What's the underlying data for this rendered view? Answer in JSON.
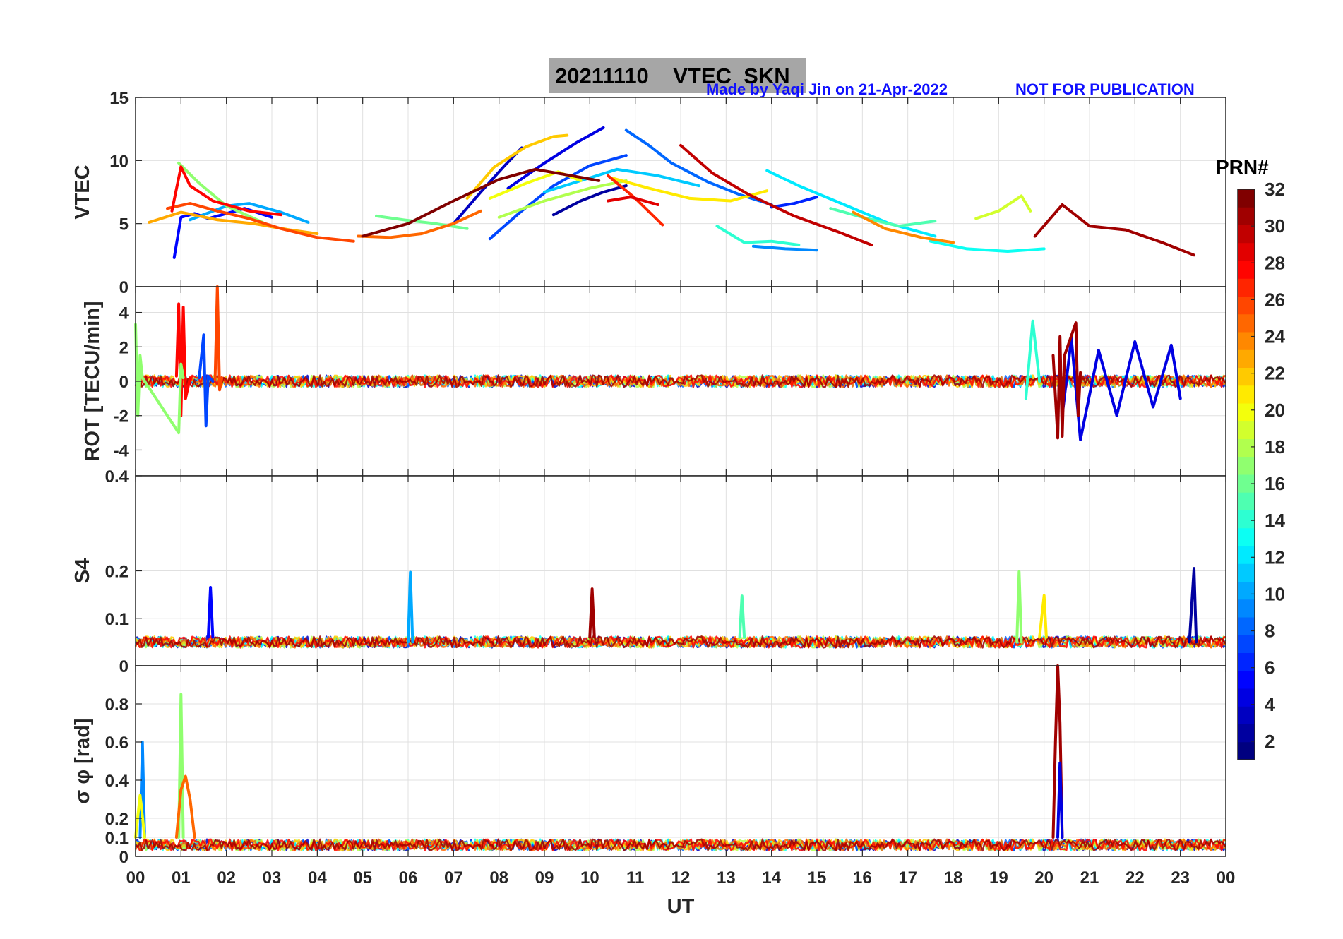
{
  "header": {
    "title": "20211110    VTEC  SKN",
    "credit": "Made by Yaqi Jin on 21-Apr-2022",
    "notice": "NOT FOR PUBLICATION"
  },
  "colors": {
    "title_box": "#a6a6a6",
    "credit_text": "#1010ff",
    "grid": "#e0e0e0",
    "axis": "#262626"
  },
  "colorbar": {
    "label": "PRN#",
    "min": 1,
    "max": 32,
    "ticks": [
      "2",
      "4",
      "6",
      "8",
      "10",
      "12",
      "14",
      "16",
      "18",
      "20",
      "22",
      "24",
      "26",
      "28",
      "30",
      "32"
    ],
    "colormap": "jet"
  },
  "chart_data": [
    {
      "type": "line",
      "panel": "vtec",
      "ylabel": "VTEC",
      "ylim": [
        0,
        15
      ],
      "yticks": [
        "0",
        "5",
        "10",
        "15"
      ],
      "xlim": [
        0,
        24
      ],
      "grid": true,
      "series_description": "one line per PRN satellite, colored by PRN",
      "series": [
        {
          "name": "PRN 2",
          "prn": 2,
          "x": [
            9.2,
            9.8,
            10.3,
            10.8
          ],
          "values": [
            5.7,
            6.8,
            7.5,
            8.0
          ]
        },
        {
          "name": "PRN 3",
          "prn": 3,
          "x": [
            7.0,
            7.6,
            8.1,
            8.5
          ],
          "values": [
            5.0,
            7.5,
            9.5,
            11.0
          ]
        },
        {
          "name": "PRN 4",
          "prn": 4,
          "x": [
            8.2,
            9.0,
            9.7,
            10.3
          ],
          "values": [
            7.8,
            9.8,
            11.4,
            12.6
          ]
        },
        {
          "name": "PRN 5",
          "prn": 5,
          "x": [
            0.85,
            1.0,
            1.3,
            1.6,
            2.0,
            2.4,
            3.0
          ],
          "values": [
            2.3,
            5.5,
            5.8,
            5.4,
            5.8,
            6.2,
            5.5
          ]
        },
        {
          "name": "PRN 6",
          "prn": 6,
          "x": [
            14.0,
            14.5,
            15.0
          ],
          "values": [
            6.3,
            6.6,
            7.1
          ]
        },
        {
          "name": "PRN 7",
          "prn": 7,
          "x": [
            7.8,
            8.5,
            9.2,
            10.0,
            10.8
          ],
          "values": [
            3.8,
            6.0,
            8.0,
            9.6,
            10.4
          ]
        },
        {
          "name": "PRN 8",
          "prn": 8,
          "x": [
            10.8,
            11.3,
            11.8,
            12.6,
            13.3,
            14.0
          ],
          "values": [
            12.4,
            11.2,
            9.8,
            8.3,
            7.3,
            6.5
          ]
        },
        {
          "name": "PRN 9",
          "prn": 9,
          "x": [
            13.6,
            14.3,
            15.0
          ],
          "values": [
            3.2,
            3.0,
            2.9
          ]
        },
        {
          "name": "PRN 10",
          "prn": 10,
          "x": [
            1.2,
            2.0,
            2.5,
            3.2,
            3.8
          ],
          "values": [
            5.3,
            6.4,
            6.6,
            5.9,
            5.1
          ]
        },
        {
          "name": "PRN 11",
          "prn": 11,
          "x": [
            9.0,
            9.8,
            10.6,
            11.5,
            12.4
          ],
          "values": [
            7.5,
            8.4,
            9.3,
            8.8,
            8.0
          ]
        },
        {
          "name": "PRN 12",
          "prn": 12,
          "x": [
            13.9,
            14.6,
            15.6,
            16.6,
            17.6
          ],
          "values": [
            9.2,
            8.0,
            6.5,
            5.0,
            4.0
          ]
        },
        {
          "name": "PRN 13",
          "prn": 13,
          "x": [
            17.5,
            18.3,
            19.2,
            20.0
          ],
          "values": [
            3.6,
            3.0,
            2.8,
            3.0
          ]
        },
        {
          "name": "PRN 14",
          "prn": 14,
          "x": [
            12.8,
            13.4,
            14.0,
            14.6
          ],
          "values": [
            4.8,
            3.5,
            3.6,
            3.3
          ]
        },
        {
          "name": "PRN 15",
          "prn": 15,
          "x": [
            15.3,
            16.0,
            16.8,
            17.6
          ],
          "values": [
            6.2,
            5.5,
            4.8,
            5.2
          ]
        },
        {
          "name": "PRN 16",
          "prn": 16,
          "x": [
            5.3,
            5.9,
            6.6,
            7.3
          ],
          "values": [
            5.6,
            5.3,
            5.0,
            4.6
          ]
        },
        {
          "name": "PRN 17",
          "prn": 17,
          "x": [
            0.95,
            1.4,
            2.0,
            2.8
          ],
          "values": [
            9.8,
            8.2,
            6.4,
            5.1
          ]
        },
        {
          "name": "PRN 18",
          "prn": 18,
          "x": [
            8.0,
            9.0,
            10.0,
            10.8
          ],
          "values": [
            5.5,
            6.8,
            7.8,
            8.4
          ]
        },
        {
          "name": "PRN 19",
          "prn": 19,
          "x": [
            18.5,
            19.0,
            19.5,
            19.7
          ],
          "values": [
            5.4,
            6.0,
            7.2,
            6.0
          ]
        },
        {
          "name": "PRN 20",
          "prn": 20,
          "x": [
            7.8,
            8.6,
            9.3,
            9.8
          ],
          "values": [
            7.0,
            8.2,
            9.1,
            8.4
          ]
        },
        {
          "name": "PRN 21",
          "prn": 21,
          "x": [
            10.5,
            11.3,
            12.2,
            13.1,
            13.9
          ],
          "values": [
            8.6,
            7.8,
            7.0,
            6.8,
            7.6
          ]
        },
        {
          "name": "PRN 22",
          "prn": 22,
          "x": [
            7.3,
            7.9,
            8.6,
            9.2,
            9.5
          ],
          "values": [
            7.0,
            9.5,
            11.1,
            11.9,
            12.0
          ]
        },
        {
          "name": "PRN 23",
          "prn": 23,
          "x": [
            0.3,
            1.0,
            1.8,
            2.6,
            3.4,
            4.0
          ],
          "values": [
            5.1,
            5.9,
            5.3,
            5.0,
            4.5,
            4.2
          ]
        },
        {
          "name": "PRN 24",
          "prn": 24,
          "x": [
            15.8,
            16.5,
            17.3,
            18.0
          ],
          "values": [
            5.9,
            4.6,
            3.9,
            3.5
          ]
        },
        {
          "name": "PRN 25",
          "prn": 25,
          "x": [
            4.9,
            5.6,
            6.3,
            7.0,
            7.6
          ],
          "values": [
            4.0,
            3.9,
            4.2,
            5.0,
            6.0
          ]
        },
        {
          "name": "PRN 26",
          "prn": 26,
          "x": [
            0.7,
            1.2,
            1.8,
            2.5,
            3.2,
            4.0,
            4.8
          ],
          "values": [
            6.2,
            6.6,
            6.0,
            5.4,
            4.6,
            3.9,
            3.6
          ]
        },
        {
          "name": "PRN 27",
          "prn": 27,
          "x": [
            10.4,
            11.0,
            11.6
          ],
          "values": [
            8.8,
            7.0,
            4.9
          ]
        },
        {
          "name": "PRN 28",
          "prn": 28,
          "x": [
            0.8,
            1.0,
            1.2,
            1.7,
            2.5,
            3.2
          ],
          "values": [
            6.0,
            9.5,
            8.0,
            6.8,
            6.0,
            5.7
          ]
        },
        {
          "name": "PRN 29",
          "prn": 29,
          "x": [
            10.4,
            10.9,
            11.5
          ],
          "values": [
            6.8,
            7.1,
            6.5
          ]
        },
        {
          "name": "PRN 30",
          "prn": 30,
          "x": [
            12.0,
            12.7,
            13.5,
            14.5,
            15.5,
            16.2
          ],
          "values": [
            11.2,
            9.0,
            7.3,
            5.6,
            4.3,
            3.3
          ]
        },
        {
          "name": "PRN 31",
          "prn": 31,
          "x": [
            19.8,
            20.4,
            21.0,
            21.8,
            22.6,
            23.3
          ],
          "values": [
            4.0,
            6.5,
            4.8,
            4.5,
            3.5,
            2.5
          ]
        },
        {
          "name": "PRN 32",
          "prn": 32,
          "x": [
            5.0,
            6.0,
            7.0,
            8.0,
            8.8,
            9.6,
            10.2
          ],
          "values": [
            4.0,
            5.0,
            6.8,
            8.5,
            9.3,
            8.8,
            8.4
          ]
        }
      ]
    },
    {
      "type": "line",
      "panel": "rot",
      "ylabel": "ROT [TECU/min]",
      "ylim": [
        -5.5,
        5.5
      ],
      "yticks": [
        "-4",
        "-2",
        "0",
        "2",
        "4"
      ],
      "xlim": [
        0,
        24
      ],
      "grid": true,
      "series": [
        {
          "name": "PRN 28",
          "prn": 28,
          "x": [
            0.9,
            0.95,
            1.0,
            1.05,
            1.1,
            1.2
          ],
          "values": [
            0.3,
            4.5,
            -2.0,
            4.3,
            -1.0,
            0.2
          ]
        },
        {
          "name": "PRN 26",
          "prn": 26,
          "x": [
            1.75,
            1.8,
            1.85,
            1.9
          ],
          "values": [
            0.1,
            5.5,
            -0.5,
            0.2
          ]
        },
        {
          "name": "PRN 7",
          "prn": 7,
          "x": [
            1.4,
            1.5,
            1.55,
            1.6,
            1.7
          ],
          "values": [
            0.2,
            2.7,
            -2.6,
            0.3,
            0.0
          ]
        },
        {
          "name": "PRN 17",
          "prn": 17,
          "x": [
            0.0,
            0.05,
            0.1,
            0.15,
            0.95,
            1.0,
            1.05
          ],
          "values": [
            3.3,
            -2.0,
            1.5,
            0.2,
            -3.0,
            1.0,
            0.2
          ]
        },
        {
          "name": "PRN 4",
          "prn": 4,
          "x": [
            20.4,
            20.6,
            20.8,
            21.2,
            21.6,
            22.0,
            22.4,
            22.8,
            23.0
          ],
          "values": [
            -2.0,
            2.5,
            -3.4,
            1.8,
            -2.0,
            2.3,
            -1.5,
            2.1,
            -1.0
          ]
        },
        {
          "name": "PRN 31",
          "prn": 31,
          "x": [
            20.2,
            20.3,
            20.35,
            20.4,
            20.45,
            20.7,
            20.75,
            20.8
          ],
          "values": [
            1.5,
            -3.3,
            2.6,
            -3.2,
            1.5,
            3.4,
            -2.0,
            0.5
          ]
        },
        {
          "name": "PRN 14",
          "prn": 14,
          "x": [
            19.6,
            19.75,
            19.9
          ],
          "values": [
            -1.0,
            3.5,
            0.0
          ]
        }
      ]
    },
    {
      "type": "line",
      "panel": "s4",
      "ylabel": "S4",
      "ylim": [
        0,
        0.4
      ],
      "yticks": [
        "0",
        "0.1",
        "0.2",
        "0.4"
      ],
      "xlim": [
        0,
        24
      ],
      "grid": true,
      "series": [
        {
          "name": "PRN 5",
          "prn": 5,
          "x": [
            1.6,
            1.65,
            1.7
          ],
          "values": [
            0.06,
            0.165,
            0.06
          ]
        },
        {
          "name": "PRN 10",
          "prn": 10,
          "x": [
            6.0,
            6.05,
            6.1
          ],
          "values": [
            0.05,
            0.197,
            0.05
          ]
        },
        {
          "name": "PRN 31",
          "prn": 31,
          "x": [
            10.0,
            10.05,
            10.1
          ],
          "values": [
            0.06,
            0.162,
            0.06
          ]
        },
        {
          "name": "PRN 17",
          "prn": 17,
          "x": [
            19.4,
            19.45,
            19.5
          ],
          "values": [
            0.05,
            0.198,
            0.05
          ]
        },
        {
          "name": "PRN 2",
          "prn": 2,
          "x": [
            23.2,
            23.3,
            23.35
          ],
          "values": [
            0.05,
            0.205,
            0.05
          ]
        },
        {
          "name": "PRN 21",
          "prn": 21,
          "x": [
            19.9,
            20.0,
            20.05
          ],
          "values": [
            0.06,
            0.148,
            0.06
          ]
        },
        {
          "name": "PRN 15",
          "prn": 15,
          "x": [
            13.3,
            13.35,
            13.4
          ],
          "values": [
            0.06,
            0.147,
            0.06
          ]
        }
      ]
    },
    {
      "type": "line",
      "panel": "sigma_phi",
      "ylabel": "σ φ [rad]",
      "ylim": [
        0,
        1.0
      ],
      "yticks": [
        "0",
        "0.1",
        "0.2",
        "0.4",
        "0.6",
        "0.8"
      ],
      "xlim": [
        0,
        24
      ],
      "grid": true,
      "series": [
        {
          "name": "PRN 31",
          "prn": 31,
          "x": [
            20.2,
            20.25,
            20.3,
            20.35,
            20.4
          ],
          "values": [
            0.1,
            0.6,
            1.0,
            0.7,
            0.1
          ]
        },
        {
          "name": "PRN 4",
          "prn": 4,
          "x": [
            20.3,
            20.35,
            20.4
          ],
          "values": [
            0.1,
            0.49,
            0.1
          ]
        },
        {
          "name": "PRN 17",
          "prn": 17,
          "x": [
            0.95,
            1.0,
            1.05
          ],
          "values": [
            0.1,
            0.85,
            0.1
          ]
        },
        {
          "name": "PRN 9",
          "prn": 9,
          "x": [
            0.1,
            0.15,
            0.2
          ],
          "values": [
            0.1,
            0.6,
            0.1
          ]
        },
        {
          "name": "PRN 25",
          "prn": 25,
          "x": [
            0.9,
            1.0,
            1.1,
            1.2,
            1.3
          ],
          "values": [
            0.1,
            0.35,
            0.42,
            0.3,
            0.1
          ]
        },
        {
          "name": "PRN 20",
          "prn": 20,
          "x": [
            0.0,
            0.1,
            0.2
          ],
          "values": [
            0.1,
            0.32,
            0.1
          ]
        }
      ]
    }
  ],
  "xaxis": {
    "label": "UT",
    "ticks": [
      "00",
      "01",
      "02",
      "03",
      "04",
      "05",
      "06",
      "07",
      "08",
      "09",
      "10",
      "11",
      "12",
      "13",
      "14",
      "15",
      "16",
      "17",
      "18",
      "19",
      "20",
      "21",
      "22",
      "23",
      "00"
    ]
  }
}
